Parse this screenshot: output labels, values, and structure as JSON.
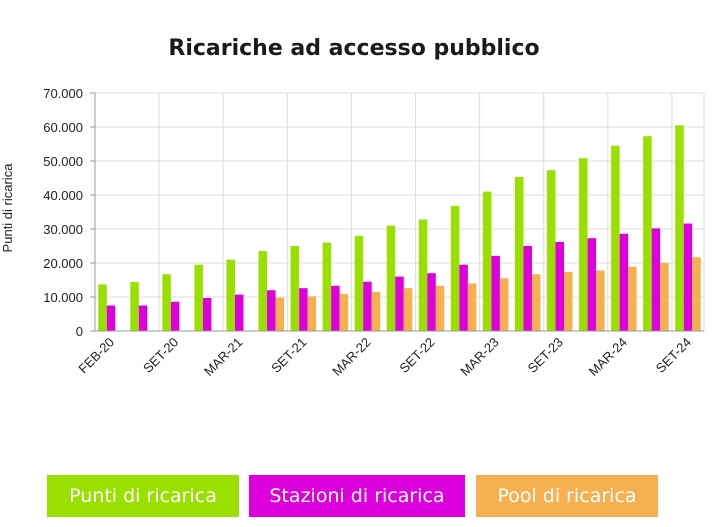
{
  "chart_data": {
    "type": "bar",
    "title": "Ricariche ad accesso pubblico",
    "xlabel": "",
    "ylabel": "Punti di ricarica",
    "ylim": [
      0,
      70000
    ],
    "yticks": [
      "0",
      "10.000",
      "20.000",
      "30.000",
      "40.000",
      "50.000",
      "60.000",
      "70.000"
    ],
    "ytick_values": [
      0,
      10000,
      20000,
      30000,
      40000,
      50000,
      60000,
      70000
    ],
    "categories": [
      "FEB-20",
      "",
      "SET-20",
      "",
      "MAR-21",
      "",
      "SET-21",
      "",
      "MAR-22",
      "",
      "SET-22",
      "",
      "MAR-23",
      "",
      "SET-23",
      "",
      "MAR-24",
      "",
      "SET-24"
    ],
    "series": [
      {
        "name": "Punti di ricarica",
        "color": "#99e000",
        "values": [
          13700,
          14400,
          16700,
          19500,
          21000,
          23500,
          25000,
          26000,
          28000,
          31000,
          32800,
          36800,
          41000,
          45300,
          47300,
          50800,
          54500,
          57300,
          60500
        ]
      },
      {
        "name": "Stazioni di ricarica",
        "color": "#dd00dd",
        "values": [
          7500,
          7500,
          8600,
          9700,
          10700,
          12000,
          12600,
          13300,
          14500,
          16000,
          17000,
          19500,
          22100,
          25000,
          26200,
          27300,
          28600,
          30200,
          31600
        ]
      },
      {
        "name": "Pool di ricarica",
        "color": "#f7b050",
        "values": [
          null,
          null,
          null,
          null,
          null,
          9800,
          10200,
          10900,
          11500,
          12600,
          13300,
          14000,
          15500,
          16700,
          17400,
          17800,
          18900,
          20000,
          21700
        ]
      }
    ],
    "grid": true,
    "legend_position": "bottom"
  }
}
